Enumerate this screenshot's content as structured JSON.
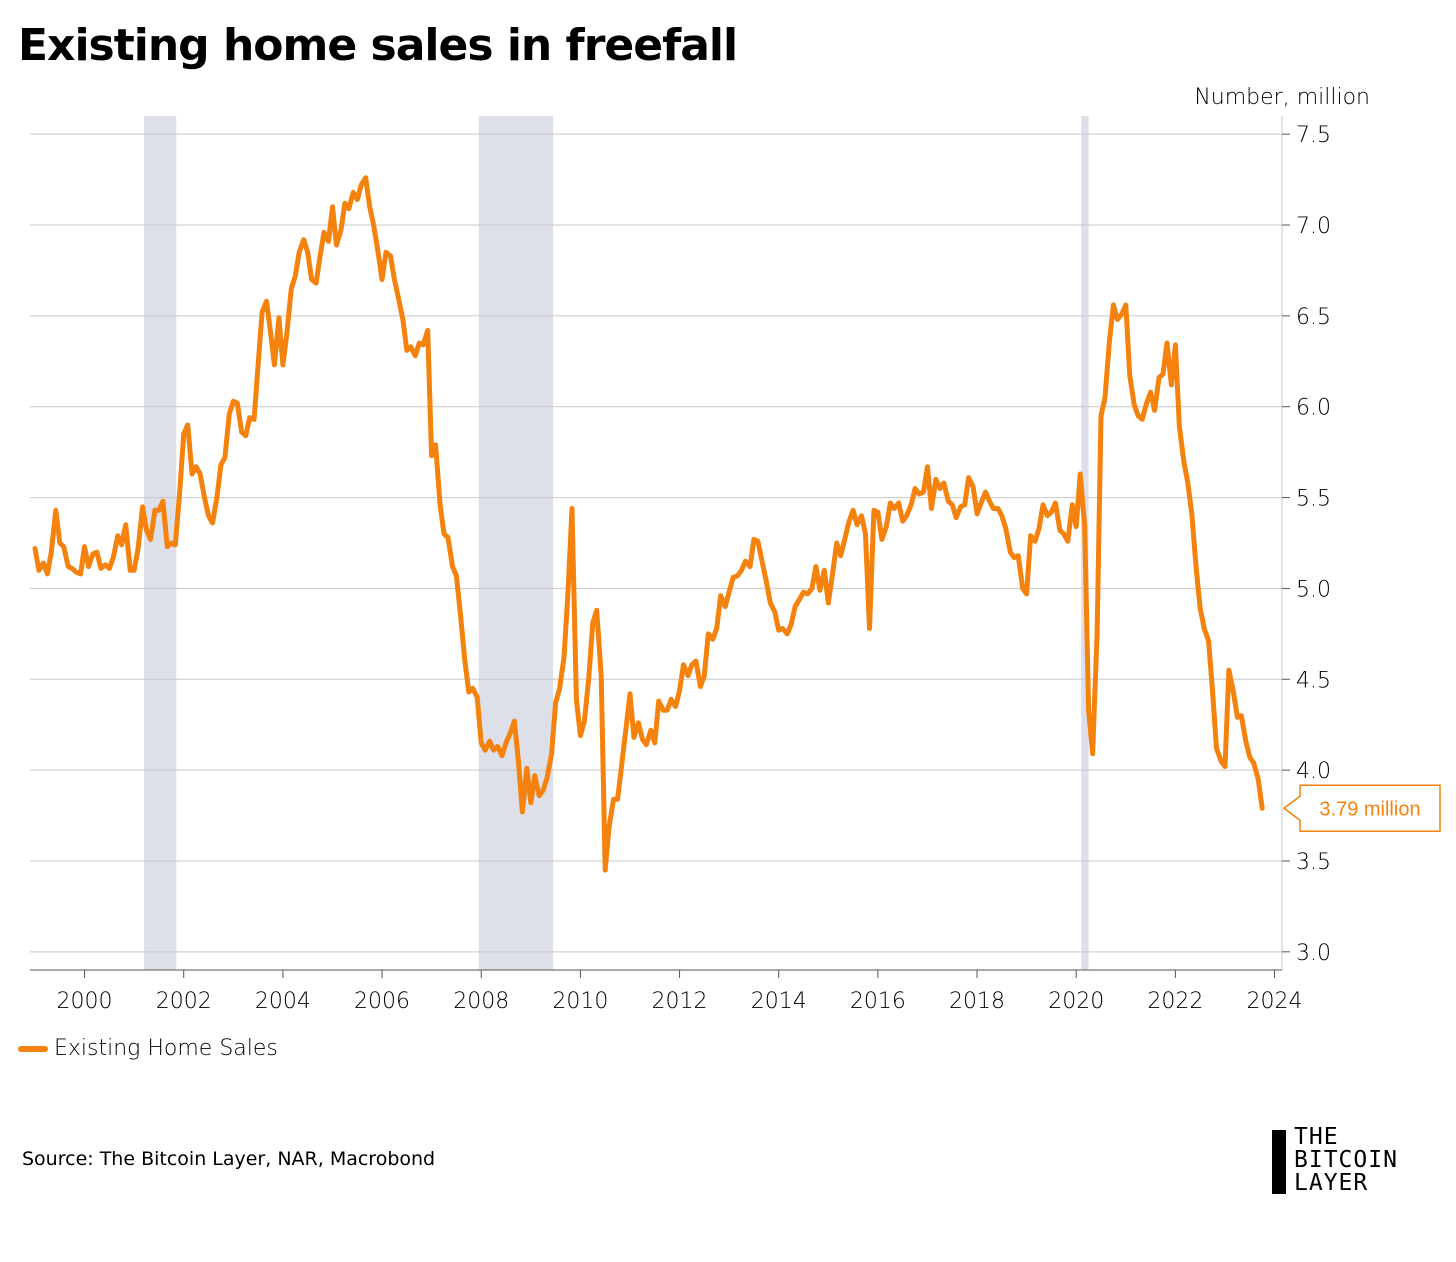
{
  "title": "Existing home sales in freefall",
  "source": "Source: The Bitcoin Layer, NAR, Macrobond",
  "logo": {
    "line1": "THE",
    "line2": "BITCOIN",
    "line3": "LAYER"
  },
  "colors": {
    "series": "#f5820d",
    "recession": "#dde0e8",
    "grid": "#c8c8c8",
    "axis": "#555555"
  },
  "chart_data": {
    "type": "line",
    "title": "Existing home sales in freefall",
    "unit_label": "Number, million",
    "xlim": [
      1998.9,
      2024.15
    ],
    "ylim": [
      2.9,
      7.6
    ],
    "y_ticks": [
      3.0,
      3.5,
      4.0,
      4.5,
      5.0,
      5.5,
      6.0,
      6.5,
      7.0,
      7.5
    ],
    "y_tick_labels": [
      "3.0",
      "3.5",
      "4.0",
      "4.5",
      "5.0",
      "5.5",
      "6.0",
      "6.5",
      "7.0",
      "7.5"
    ],
    "x_ticks": [
      2000,
      2002,
      2004,
      2006,
      2008,
      2010,
      2012,
      2014,
      2016,
      2018,
      2020,
      2022,
      2024
    ],
    "x_tick_labels": [
      "2000",
      "2002",
      "2004",
      "2006",
      "2008",
      "2010",
      "2012",
      "2014",
      "2016",
      "2018",
      "2020",
      "2022",
      "2024"
    ],
    "grid": "horizontal",
    "legend": {
      "position": "bottom-left",
      "entries": [
        "Existing Home Sales"
      ]
    },
    "recessions": [
      [
        2001.2,
        2001.85
      ],
      [
        2007.95,
        2009.45
      ],
      [
        2020.1,
        2020.25
      ]
    ],
    "annotation": {
      "text": "3.79 million",
      "x": 2023.75,
      "y": 3.79
    },
    "series": [
      {
        "name": "Existing Home Sales",
        "x": [
          1999.0,
          1999.08,
          1999.17,
          1999.25,
          1999.33,
          1999.42,
          1999.5,
          1999.58,
          1999.67,
          1999.75,
          1999.83,
          1999.92,
          2000.0,
          2000.08,
          2000.17,
          2000.25,
          2000.33,
          2000.42,
          2000.5,
          2000.58,
          2000.67,
          2000.75,
          2000.83,
          2000.92,
          2001.0,
          2001.08,
          2001.17,
          2001.25,
          2001.33,
          2001.42,
          2001.5,
          2001.58,
          2001.67,
          2001.75,
          2001.83,
          2001.92,
          2002.0,
          2002.08,
          2002.17,
          2002.25,
          2002.33,
          2002.42,
          2002.5,
          2002.58,
          2002.67,
          2002.75,
          2002.83,
          2002.92,
          2003.0,
          2003.08,
          2003.17,
          2003.25,
          2003.33,
          2003.42,
          2003.5,
          2003.58,
          2003.67,
          2003.75,
          2003.83,
          2003.92,
          2004.0,
          2004.08,
          2004.17,
          2004.25,
          2004.33,
          2004.42,
          2004.5,
          2004.58,
          2004.67,
          2004.75,
          2004.83,
          2004.92,
          2005.0,
          2005.08,
          2005.17,
          2005.25,
          2005.33,
          2005.42,
          2005.5,
          2005.58,
          2005.67,
          2005.75,
          2005.83,
          2005.92,
          2006.0,
          2006.08,
          2006.17,
          2006.25,
          2006.33,
          2006.42,
          2006.5,
          2006.58,
          2006.67,
          2006.75,
          2006.83,
          2006.92,
          2007.0,
          2007.08,
          2007.17,
          2007.25,
          2007.33,
          2007.42,
          2007.5,
          2007.58,
          2007.67,
          2007.75,
          2007.83,
          2007.92,
          2008.0,
          2008.08,
          2008.17,
          2008.25,
          2008.33,
          2008.42,
          2008.5,
          2008.58,
          2008.67,
          2008.75,
          2008.83,
          2008.92,
          2009.0,
          2009.08,
          2009.17,
          2009.25,
          2009.33,
          2009.42,
          2009.5,
          2009.58,
          2009.67,
          2009.75,
          2009.83,
          2009.92,
          2010.0,
          2010.08,
          2010.17,
          2010.25,
          2010.33,
          2010.42,
          2010.5,
          2010.58,
          2010.67,
          2010.75,
          2010.83,
          2010.92,
          2011.0,
          2011.08,
          2011.17,
          2011.25,
          2011.33,
          2011.42,
          2011.5,
          2011.58,
          2011.67,
          2011.75,
          2011.83,
          2011.92,
          2012.0,
          2012.08,
          2012.17,
          2012.25,
          2012.33,
          2012.42,
          2012.5,
          2012.58,
          2012.67,
          2012.75,
          2012.83,
          2012.92,
          2013.0,
          2013.08,
          2013.17,
          2013.25,
          2013.33,
          2013.42,
          2013.5,
          2013.58,
          2013.67,
          2013.75,
          2013.83,
          2013.92,
          2014.0,
          2014.08,
          2014.17,
          2014.25,
          2014.33,
          2014.42,
          2014.5,
          2014.58,
          2014.67,
          2014.75,
          2014.83,
          2014.92,
          2015.0,
          2015.08,
          2015.17,
          2015.25,
          2015.33,
          2015.42,
          2015.5,
          2015.58,
          2015.67,
          2015.75,
          2015.83,
          2015.92,
          2016.0,
          2016.08,
          2016.17,
          2016.25,
          2016.33,
          2016.42,
          2016.5,
          2016.58,
          2016.67,
          2016.75,
          2016.83,
          2016.92,
          2017.0,
          2017.08,
          2017.17,
          2017.25,
          2017.33,
          2017.42,
          2017.5,
          2017.58,
          2017.67,
          2017.75,
          2017.83,
          2017.92,
          2018.0,
          2018.08,
          2018.17,
          2018.25,
          2018.33,
          2018.42,
          2018.5,
          2018.58,
          2018.67,
          2018.75,
          2018.83,
          2018.92,
          2019.0,
          2019.08,
          2019.17,
          2019.25,
          2019.33,
          2019.42,
          2019.5,
          2019.58,
          2019.67,
          2019.75,
          2019.83,
          2019.92,
          2020.0,
          2020.08,
          2020.17,
          2020.25,
          2020.33,
          2020.42,
          2020.5,
          2020.58,
          2020.67,
          2020.75,
          2020.83,
          2020.92,
          2021.0,
          2021.08,
          2021.17,
          2021.25,
          2021.33,
          2021.42,
          2021.5,
          2021.58,
          2021.67,
          2021.75,
          2021.83,
          2021.92,
          2022.0,
          2022.08,
          2022.17,
          2022.25,
          2022.33,
          2022.42,
          2022.5,
          2022.58,
          2022.67,
          2022.75,
          2022.83,
          2022.92,
          2023.0,
          2023.08,
          2023.17,
          2023.25,
          2023.33,
          2023.42,
          2023.5,
          2023.58,
          2023.67,
          2023.75
        ],
        "y": [
          5.22,
          5.1,
          5.14,
          5.08,
          5.2,
          5.43,
          5.25,
          5.23,
          5.12,
          5.11,
          5.09,
          5.08,
          5.23,
          5.12,
          5.19,
          5.2,
          5.11,
          5.13,
          5.11,
          5.17,
          5.29,
          5.24,
          5.35,
          5.1,
          5.1,
          5.22,
          5.45,
          5.32,
          5.27,
          5.43,
          5.43,
          5.48,
          5.23,
          5.25,
          5.24,
          5.53,
          5.85,
          5.9,
          5.63,
          5.67,
          5.63,
          5.5,
          5.4,
          5.36,
          5.5,
          5.68,
          5.72,
          5.96,
          6.03,
          6.02,
          5.86,
          5.84,
          5.94,
          5.93,
          6.23,
          6.52,
          6.58,
          6.41,
          6.23,
          6.49,
          6.23,
          6.4,
          6.65,
          6.72,
          6.85,
          6.92,
          6.85,
          6.7,
          6.68,
          6.83,
          6.96,
          6.91,
          7.1,
          6.89,
          6.97,
          7.12,
          7.09,
          7.18,
          7.14,
          7.22,
          7.26,
          7.1,
          7.0,
          6.85,
          6.7,
          6.85,
          6.83,
          6.7,
          6.6,
          6.48,
          6.31,
          6.33,
          6.28,
          6.35,
          6.34,
          6.42,
          5.73,
          5.79,
          5.46,
          5.3,
          5.28,
          5.12,
          5.07,
          4.86,
          4.6,
          4.43,
          4.45,
          4.4,
          4.15,
          4.11,
          4.16,
          4.11,
          4.13,
          4.08,
          4.15,
          4.2,
          4.27,
          4.05,
          3.77,
          4.01,
          3.82,
          3.97,
          3.86,
          3.89,
          3.96,
          4.09,
          4.37,
          4.45,
          4.62,
          4.98,
          5.44,
          4.39,
          4.19,
          4.27,
          4.51,
          4.81,
          4.88,
          4.52,
          3.45,
          3.69,
          3.84,
          3.84,
          4.02,
          4.23,
          4.42,
          4.18,
          4.26,
          4.17,
          4.14,
          4.22,
          4.15,
          4.38,
          4.33,
          4.33,
          4.39,
          4.35,
          4.44,
          4.58,
          4.52,
          4.58,
          4.6,
          4.46,
          4.52,
          4.75,
          4.72,
          4.78,
          4.96,
          4.9,
          4.98,
          5.06,
          5.07,
          5.1,
          5.15,
          5.12,
          5.27,
          5.26,
          5.14,
          5.04,
          4.92,
          4.87,
          4.77,
          4.78,
          4.75,
          4.8,
          4.9,
          4.94,
          4.98,
          4.97,
          5.0,
          5.12,
          4.99,
          5.1,
          4.92,
          5.07,
          5.25,
          5.18,
          5.27,
          5.37,
          5.43,
          5.35,
          5.4,
          5.3,
          4.78,
          5.43,
          5.42,
          5.27,
          5.34,
          5.47,
          5.44,
          5.47,
          5.37,
          5.4,
          5.46,
          5.55,
          5.52,
          5.53,
          5.67,
          5.44,
          5.6,
          5.55,
          5.58,
          5.48,
          5.46,
          5.39,
          5.45,
          5.46,
          5.61,
          5.56,
          5.41,
          5.47,
          5.53,
          5.48,
          5.44,
          5.44,
          5.4,
          5.33,
          5.2,
          5.17,
          5.18,
          5.0,
          4.97,
          5.29,
          5.26,
          5.33,
          5.46,
          5.4,
          5.42,
          5.47,
          5.32,
          5.3,
          5.26,
          5.46,
          5.34,
          5.63,
          5.34,
          4.33,
          4.09,
          4.75,
          5.95,
          6.05,
          6.36,
          6.56,
          6.48,
          6.51,
          6.56,
          6.17,
          6.01,
          5.95,
          5.93,
          6.02,
          6.08,
          5.98,
          6.16,
          6.18,
          6.35,
          6.12,
          6.34,
          5.89,
          5.7,
          5.58,
          5.41,
          5.11,
          4.89,
          4.78,
          4.71,
          4.43,
          4.12,
          4.05,
          4.02,
          4.55,
          4.43,
          4.29,
          4.3,
          4.16,
          4.07,
          4.04,
          3.95,
          3.79
        ]
      }
    ]
  }
}
